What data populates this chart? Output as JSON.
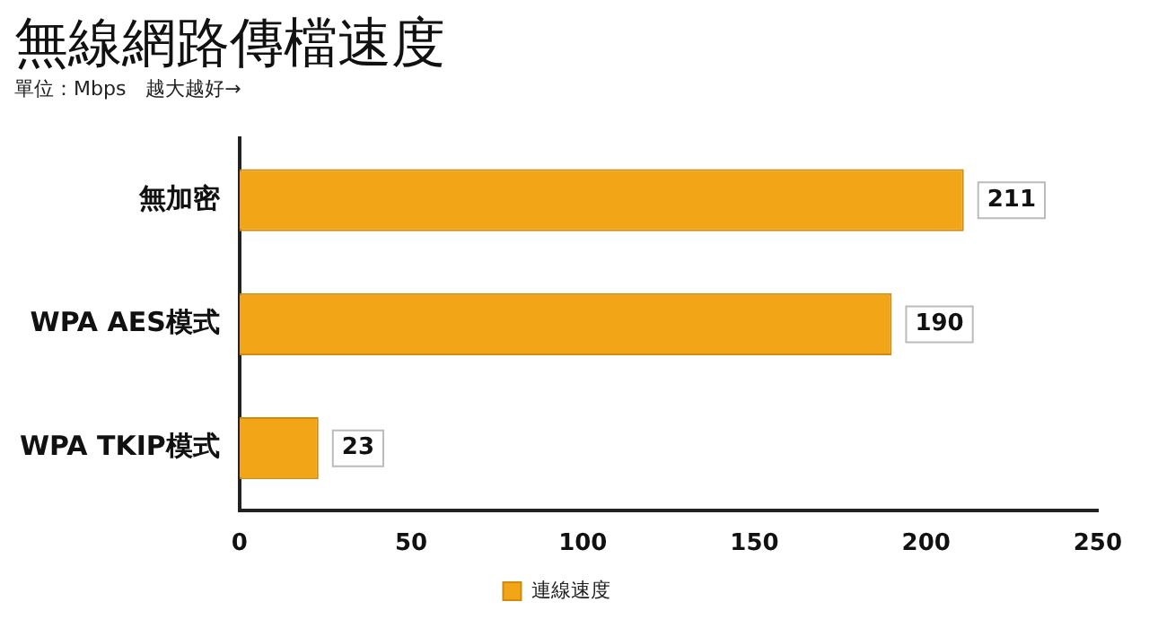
{
  "chart_data": {
    "type": "bar",
    "orientation": "horizontal",
    "title": "無線網路傳檔速度",
    "subtitle": "單位：Mbps　越大越好→",
    "categories": [
      "無加密",
      "WPA AES模式",
      "WPA TKIP模式"
    ],
    "series": [
      {
        "name": "連線速度",
        "color": "#f2a516",
        "values": [
          211,
          190,
          23
        ]
      }
    ],
    "xlim": [
      0,
      250
    ],
    "xticks": [
      0,
      50,
      100,
      150,
      200,
      250
    ],
    "grid": false,
    "legend": "bottom",
    "data_labels": true
  }
}
